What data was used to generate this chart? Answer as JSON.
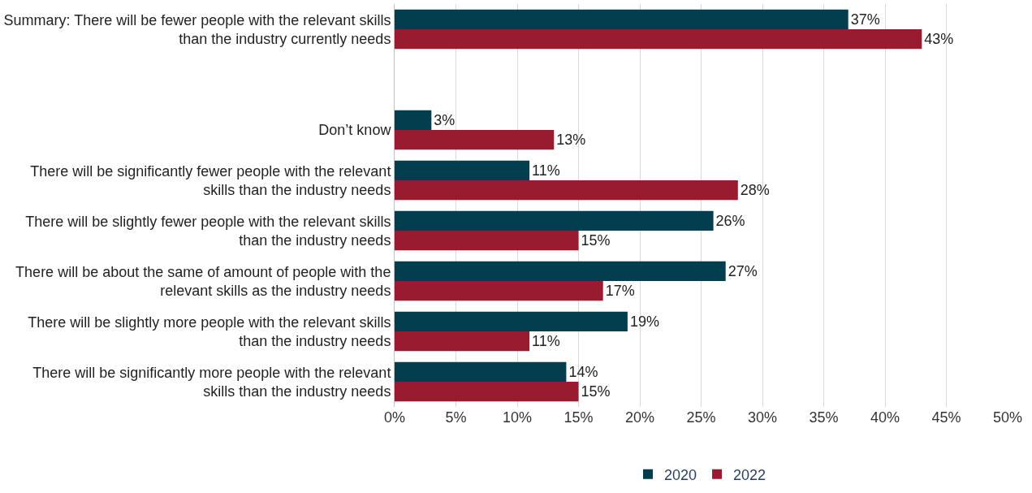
{
  "chart_data": {
    "type": "bar",
    "orientation": "horizontal",
    "categories": [
      "Summary: There will be fewer people with the relevant skills than the industry currently needs",
      null,
      "Don’t know",
      "There will be significantly fewer people with the relevant skills than the industry needs",
      "There will be slightly fewer people with the relevant skills than the industry needs",
      "There will be about the same of amount of people with the relevant skills as the industry needs",
      "There will be slightly more people with the relevant skills than the industry needs",
      "There will be significantly more people with the relevant skills than the industry needs"
    ],
    "series": [
      {
        "name": "2020",
        "color": "#023e4e",
        "values": [
          37,
          null,
          3,
          11,
          26,
          27,
          19,
          14
        ],
        "value_labels": [
          "37%",
          null,
          "3%",
          "11%",
          "26%",
          "27%",
          "19%",
          "14%"
        ]
      },
      {
        "name": "2022",
        "color": "#981b30",
        "values": [
          43,
          null,
          13,
          28,
          15,
          17,
          11,
          15
        ],
        "value_labels": [
          "43%",
          null,
          "13%",
          "28%",
          "15%",
          "17%",
          "11%",
          "15%"
        ]
      }
    ],
    "xlim": [
      0,
      50
    ],
    "xticks": [
      {
        "value": 0,
        "label": "0%"
      },
      {
        "value": 5,
        "label": "5%"
      },
      {
        "value": 10,
        "label": "10%"
      },
      {
        "value": 15,
        "label": "15%"
      },
      {
        "value": 20,
        "label": "20%"
      },
      {
        "value": 25,
        "label": "25%"
      },
      {
        "value": 30,
        "label": "30%"
      },
      {
        "value": 35,
        "label": "35%"
      },
      {
        "value": 40,
        "label": "40%"
      },
      {
        "value": 45,
        "label": "45%"
      },
      {
        "value": 50,
        "label": "50%"
      }
    ],
    "grid": "x",
    "legend": "bottom"
  }
}
